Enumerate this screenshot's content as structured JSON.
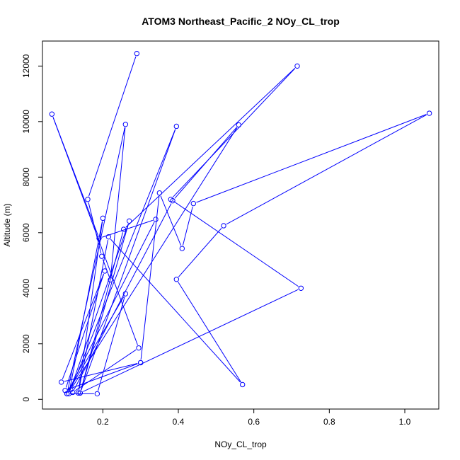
{
  "chart_data": {
    "type": "line",
    "title": "ATOM3 Northeast_Pacific_2 NOy_CL_trop",
    "xlabel": "NOy_CL_trop",
    "ylabel": "Altitude (m)",
    "xlim": [
      0.04,
      1.09
    ],
    "ylim": [
      -350,
      12900
    ],
    "x_ticks": [
      0.2,
      0.4,
      0.6,
      0.8,
      1.0
    ],
    "x_tick_labels": [
      "0.2",
      "0.4",
      "0.6",
      "0.8",
      "1.0"
    ],
    "y_ticks": [
      0,
      2000,
      4000,
      6000,
      8000,
      10000,
      12000
    ],
    "y_tick_labels": [
      "0",
      "2000",
      "4000",
      "6000",
      "8000",
      "10000",
      "12000"
    ],
    "grid": false,
    "legend": "none",
    "color": "#0000ff",
    "marker": "open-circle",
    "series": [
      {
        "x": [
          0.29,
          0.16,
          0.197,
          0.22,
          0.26,
          0.105,
          0.26,
          0.185,
          0.105,
          0.34,
          0.19,
          0.065,
          0.295,
          0.12,
          0.385,
          0.56,
          0.115,
          0.395,
          0.14,
          0.255,
          0.715,
          0.38,
          0.725,
          0.14,
          0.27,
          0.11,
          0.2,
          0.135,
          0.215,
          0.57,
          0.395,
          0.52,
          1.065,
          0.44,
          0.41,
          0.35,
          0.3,
          0.1,
          0.205,
          0.09,
          0.3
        ],
        "y": [
          12450,
          7200,
          5150,
          4300,
          9900,
          200,
          3800,
          200,
          200,
          6480,
          5800,
          10270,
          1850,
          250,
          7150,
          9880,
          350,
          9830,
          230,
          6120,
          12000,
          7200,
          4000,
          230,
          6420,
          200,
          6520,
          230,
          5850,
          530,
          4320,
          6250,
          10300,
          7050,
          5430,
          7430,
          1320,
          320,
          4620,
          620,
          1320
        ]
      }
    ]
  }
}
